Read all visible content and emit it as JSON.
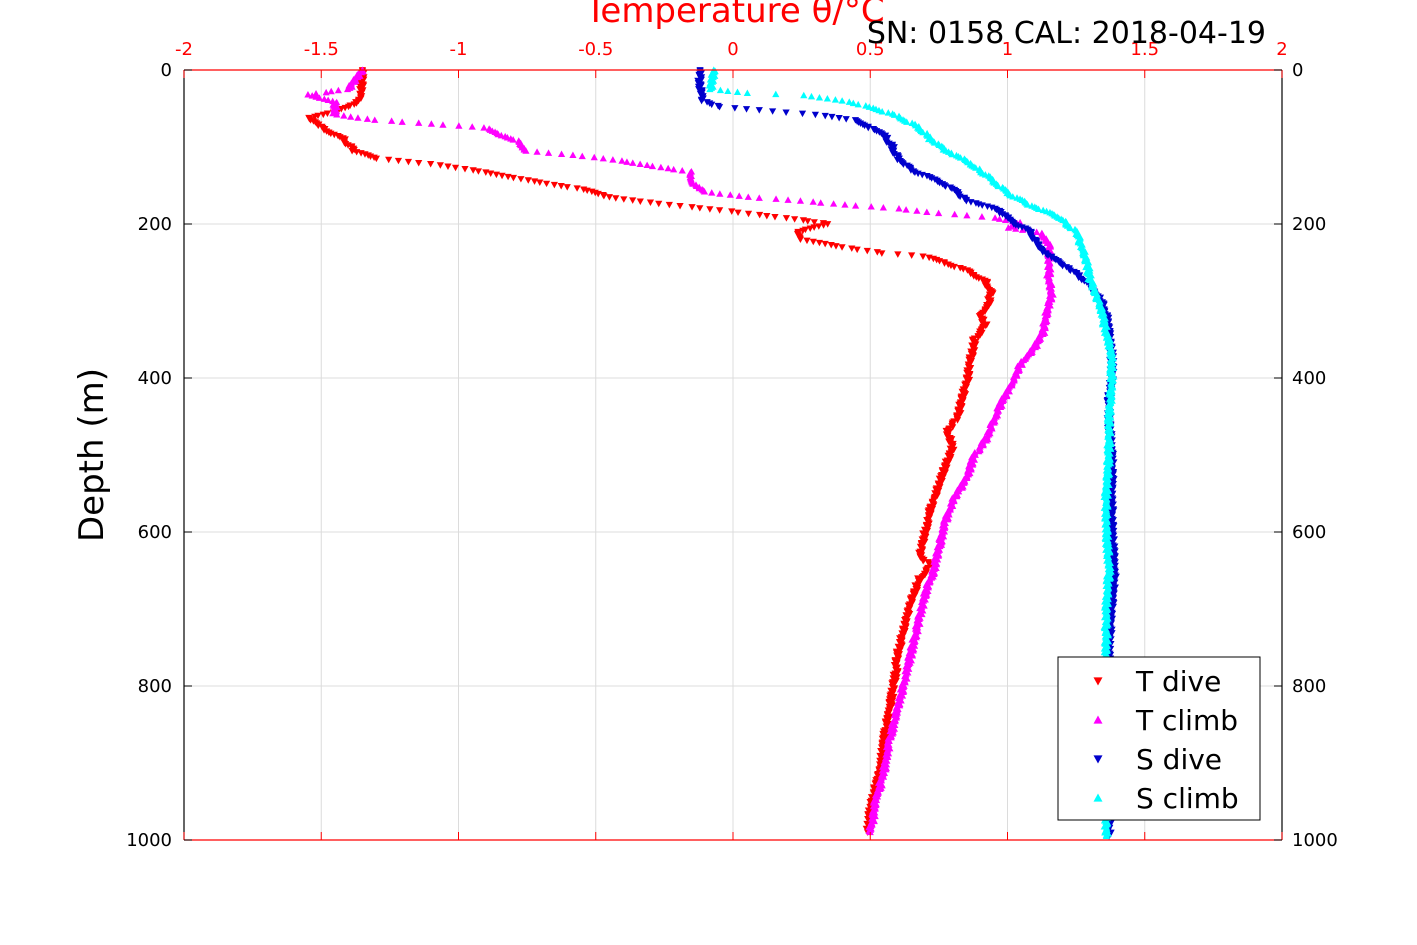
{
  "chart_data": {
    "type": "scatter",
    "title": "SN: 0158  CAL: 2018-04-19",
    "xlabel": "Temperature θ/°C",
    "ylabel": "Depth (m)",
    "xlim": [
      -2,
      2
    ],
    "ylim": [
      0,
      1000
    ],
    "y_inverted": true,
    "x_ticks": [
      "-2",
      "-1.5",
      "-1",
      "-0.5",
      "0",
      "0.5",
      "1",
      "1.5",
      "2"
    ],
    "y_ticks": [
      "0",
      "200",
      "400",
      "600",
      "800",
      "1000"
    ],
    "grid": true,
    "legend_position": "bottom-right",
    "colors": {
      "axis_top": "#ff0000",
      "t_dive": "#ff0000",
      "t_climb": "#ff00ff",
      "s_dive": "#0000cc",
      "s_climb": "#00ffff"
    },
    "series": [
      {
        "name": "T dive",
        "marker": "triangle-down",
        "color": "#ff0000",
        "points": [
          [
            -1.35,
            0
          ],
          [
            -1.35,
            20
          ],
          [
            -1.36,
            40
          ],
          [
            -1.45,
            55
          ],
          [
            -1.55,
            62
          ],
          [
            -1.5,
            75
          ],
          [
            -1.42,
            90
          ],
          [
            -1.38,
            105
          ],
          [
            -1.3,
            115
          ],
          [
            -1.1,
            122
          ],
          [
            -0.95,
            130
          ],
          [
            -0.8,
            140
          ],
          [
            -0.55,
            155
          ],
          [
            -0.45,
            165
          ],
          [
            -0.3,
            172
          ],
          [
            -0.15,
            178
          ],
          [
            -0.05,
            182
          ],
          [
            0.1,
            188
          ],
          [
            0.25,
            195
          ],
          [
            0.35,
            200
          ],
          [
            0.23,
            210
          ],
          [
            0.24,
            220
          ],
          [
            0.4,
            230
          ],
          [
            0.55,
            238
          ],
          [
            0.7,
            242
          ],
          [
            0.75,
            248
          ],
          [
            0.85,
            260
          ],
          [
            0.92,
            275
          ],
          [
            0.94,
            290
          ],
          [
            0.93,
            305
          ],
          [
            0.9,
            318
          ],
          [
            0.92,
            332
          ],
          [
            0.88,
            350
          ],
          [
            0.87,
            370
          ],
          [
            0.86,
            390
          ],
          [
            0.85,
            410
          ],
          [
            0.83,
            430
          ],
          [
            0.82,
            450
          ],
          [
            0.78,
            470
          ],
          [
            0.8,
            490
          ],
          [
            0.78,
            510
          ],
          [
            0.75,
            540
          ],
          [
            0.72,
            570
          ],
          [
            0.7,
            600
          ],
          [
            0.68,
            630
          ],
          [
            0.72,
            645
          ],
          [
            0.68,
            660
          ],
          [
            0.66,
            680
          ],
          [
            0.64,
            700
          ],
          [
            0.62,
            730
          ],
          [
            0.6,
            760
          ],
          [
            0.59,
            790
          ],
          [
            0.57,
            830
          ],
          [
            0.55,
            870
          ],
          [
            0.54,
            900
          ],
          [
            0.52,
            930
          ],
          [
            0.5,
            960
          ],
          [
            0.49,
            990
          ]
        ]
      },
      {
        "name": "T climb",
        "marker": "triangle-up",
        "color": "#ff00ff",
        "points": [
          [
            -1.35,
            0
          ],
          [
            -1.4,
            25
          ],
          [
            -1.55,
            32
          ],
          [
            -1.45,
            42
          ],
          [
            -1.45,
            58
          ],
          [
            -1.3,
            65
          ],
          [
            -1.1,
            70
          ],
          [
            -0.9,
            75
          ],
          [
            -0.85,
            85
          ],
          [
            -0.78,
            92
          ],
          [
            -0.75,
            105
          ],
          [
            -0.55,
            112
          ],
          [
            -0.4,
            118
          ],
          [
            -0.3,
            125
          ],
          [
            -0.15,
            132
          ],
          [
            -0.15,
            145
          ],
          [
            -0.1,
            158
          ],
          [
            0.05,
            165
          ],
          [
            0.25,
            170
          ],
          [
            0.4,
            175
          ],
          [
            0.6,
            180
          ],
          [
            0.75,
            186
          ],
          [
            0.95,
            192
          ],
          [
            1.05,
            198
          ],
          [
            1.0,
            205
          ],
          [
            1.13,
            212
          ],
          [
            1.15,
            225
          ],
          [
            1.15,
            245
          ],
          [
            1.15,
            270
          ],
          [
            1.16,
            295
          ],
          [
            1.14,
            320
          ],
          [
            1.13,
            340
          ],
          [
            1.1,
            360
          ],
          [
            1.05,
            380
          ],
          [
            1.02,
            405
          ],
          [
            0.98,
            430
          ],
          [
            0.95,
            455
          ],
          [
            0.93,
            475
          ],
          [
            0.88,
            500
          ],
          [
            0.85,
            530
          ],
          [
            0.8,
            560
          ],
          [
            0.77,
            590
          ],
          [
            0.75,
            620
          ],
          [
            0.73,
            650
          ],
          [
            0.7,
            680
          ],
          [
            0.68,
            710
          ],
          [
            0.66,
            740
          ],
          [
            0.64,
            770
          ],
          [
            0.62,
            800
          ],
          [
            0.6,
            830
          ],
          [
            0.57,
            870
          ],
          [
            0.55,
            910
          ],
          [
            0.52,
            950
          ],
          [
            0.5,
            990
          ]
        ]
      },
      {
        "name": "S dive",
        "marker": "triangle-down",
        "color": "#0000cc",
        "points": [
          [
            -0.12,
            0
          ],
          [
            -0.12,
            20
          ],
          [
            -0.11,
            40
          ],
          [
            -0.05,
            48
          ],
          [
            0.1,
            52
          ],
          [
            0.3,
            58
          ],
          [
            0.45,
            65
          ],
          [
            0.5,
            75
          ],
          [
            0.55,
            85
          ],
          [
            0.58,
            100
          ],
          [
            0.6,
            115
          ],
          [
            0.65,
            130
          ],
          [
            0.75,
            145
          ],
          [
            0.82,
            160
          ],
          [
            0.85,
            170
          ],
          [
            0.95,
            180
          ],
          [
            1.0,
            190
          ],
          [
            1.03,
            200
          ],
          [
            1.08,
            210
          ],
          [
            1.1,
            222
          ],
          [
            1.12,
            235
          ],
          [
            1.18,
            248
          ],
          [
            1.24,
            262
          ],
          [
            1.3,
            280
          ],
          [
            1.34,
            300
          ],
          [
            1.36,
            320
          ],
          [
            1.37,
            345
          ],
          [
            1.38,
            370
          ],
          [
            1.38,
            400
          ],
          [
            1.37,
            430
          ],
          [
            1.37,
            460
          ],
          [
            1.38,
            500
          ],
          [
            1.38,
            550
          ],
          [
            1.38,
            600
          ],
          [
            1.39,
            650
          ],
          [
            1.38,
            700
          ],
          [
            1.37,
            750
          ],
          [
            1.37,
            800
          ],
          [
            1.37,
            850
          ],
          [
            1.37,
            900
          ],
          [
            1.37,
            950
          ],
          [
            1.37,
            995
          ]
        ]
      },
      {
        "name": "S climb",
        "marker": "triangle-up",
        "color": "#00ffff",
        "points": [
          [
            -0.07,
            0
          ],
          [
            -0.08,
            25
          ],
          [
            0.05,
            30
          ],
          [
            0.25,
            33
          ],
          [
            0.4,
            40
          ],
          [
            0.5,
            48
          ],
          [
            0.6,
            60
          ],
          [
            0.68,
            75
          ],
          [
            0.72,
            90
          ],
          [
            0.78,
            105
          ],
          [
            0.86,
            120
          ],
          [
            0.9,
            130
          ],
          [
            0.95,
            145
          ],
          [
            1.0,
            160
          ],
          [
            1.08,
            175
          ],
          [
            1.15,
            185
          ],
          [
            1.2,
            195
          ],
          [
            1.25,
            210
          ],
          [
            1.27,
            230
          ],
          [
            1.29,
            250
          ],
          [
            1.3,
            270
          ],
          [
            1.32,
            290
          ],
          [
            1.34,
            310
          ],
          [
            1.36,
            340
          ],
          [
            1.38,
            370
          ],
          [
            1.38,
            400
          ],
          [
            1.37,
            450
          ],
          [
            1.37,
            500
          ],
          [
            1.36,
            550
          ],
          [
            1.36,
            600
          ],
          [
            1.37,
            650
          ],
          [
            1.36,
            700
          ],
          [
            1.36,
            750
          ],
          [
            1.36,
            800
          ],
          [
            1.36,
            850
          ],
          [
            1.36,
            900
          ],
          [
            1.36,
            950
          ],
          [
            1.36,
            995
          ]
        ]
      }
    ]
  }
}
